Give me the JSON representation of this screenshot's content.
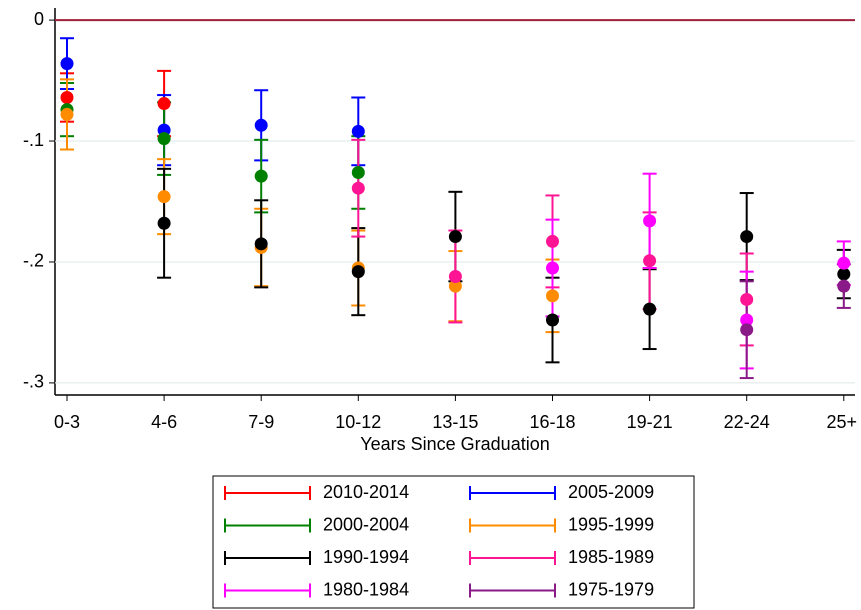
{
  "chart_data": {
    "type": "errorbar",
    "xlabel": "Years Since Graduation",
    "categories": [
      "0-3",
      "4-6",
      "7-9",
      "10-12",
      "13-15",
      "16-18",
      "19-21",
      "22-24",
      "25+"
    ],
    "ylim": [
      -0.31,
      0.01
    ],
    "yticks": [
      0,
      {
        "value": -0.1,
        "label": "-.1"
      },
      {
        "value": -0.2,
        "label": "-.2"
      },
      {
        "value": -0.3,
        "label": "-.3"
      }
    ],
    "grid": true,
    "reference_line": {
      "value": 0,
      "color": "#a0203c"
    },
    "legend_position": "bottom",
    "series": [
      {
        "name": "2010-2014",
        "color": "#ff0000",
        "values": [
          -0.064,
          -0.069,
          null,
          null,
          null,
          null,
          null,
          null,
          null
        ],
        "errors": [
          0.02,
          0.027,
          null,
          null,
          null,
          null,
          null,
          null,
          null
        ]
      },
      {
        "name": "2005-2009",
        "color": "#0000ff",
        "values": [
          -0.036,
          -0.091,
          -0.087,
          -0.092,
          null,
          null,
          null,
          null,
          null
        ],
        "errors": [
          0.021,
          0.029,
          0.029,
          0.028,
          null,
          null,
          null,
          null,
          null
        ]
      },
      {
        "name": "2000-2004",
        "color": "#008000",
        "values": [
          -0.074,
          -0.098,
          -0.129,
          -0.126,
          null,
          null,
          null,
          null,
          null
        ],
        "errors": [
          0.022,
          0.03,
          0.03,
          0.03,
          null,
          null,
          null,
          null,
          null
        ]
      },
      {
        "name": "1995-1999",
        "color": "#ff8c00",
        "values": [
          -0.078,
          -0.146,
          -0.188,
          -0.205,
          -0.22,
          -0.228,
          null,
          null,
          null
        ],
        "errors": [
          0.029,
          0.031,
          0.032,
          0.031,
          0.029,
          0.03,
          null,
          null,
          null
        ]
      },
      {
        "name": "1990-1994",
        "color": "#000000",
        "values": [
          null,
          -0.168,
          -0.185,
          -0.208,
          -0.179,
          -0.248,
          -0.239,
          -0.179,
          -0.21
        ],
        "errors": [
          null,
          0.045,
          0.036,
          0.036,
          0.037,
          0.035,
          0.033,
          0.036,
          0.02
        ]
      },
      {
        "name": "1985-1989",
        "color": "#ff1493",
        "values": [
          null,
          null,
          null,
          -0.139,
          -0.212,
          -0.183,
          -0.199,
          -0.231,
          null
        ],
        "errors": [
          null,
          null,
          null,
          0.04,
          0.038,
          0.038,
          0.04,
          0.038,
          null
        ]
      },
      {
        "name": "1980-1984",
        "color": "#ff00ff",
        "values": [
          null,
          null,
          null,
          null,
          null,
          -0.205,
          -0.166,
          -0.248,
          -0.201
        ],
        "errors": [
          null,
          null,
          null,
          null,
          null,
          0.04,
          0.039,
          0.04,
          0.018
        ]
      },
      {
        "name": "1975-1979",
        "color": "#8b1a89",
        "values": [
          null,
          null,
          null,
          null,
          null,
          null,
          null,
          -0.256,
          -0.22
        ],
        "errors": [
          null,
          null,
          null,
          null,
          null,
          null,
          null,
          0.04,
          0.018
        ]
      }
    ]
  }
}
